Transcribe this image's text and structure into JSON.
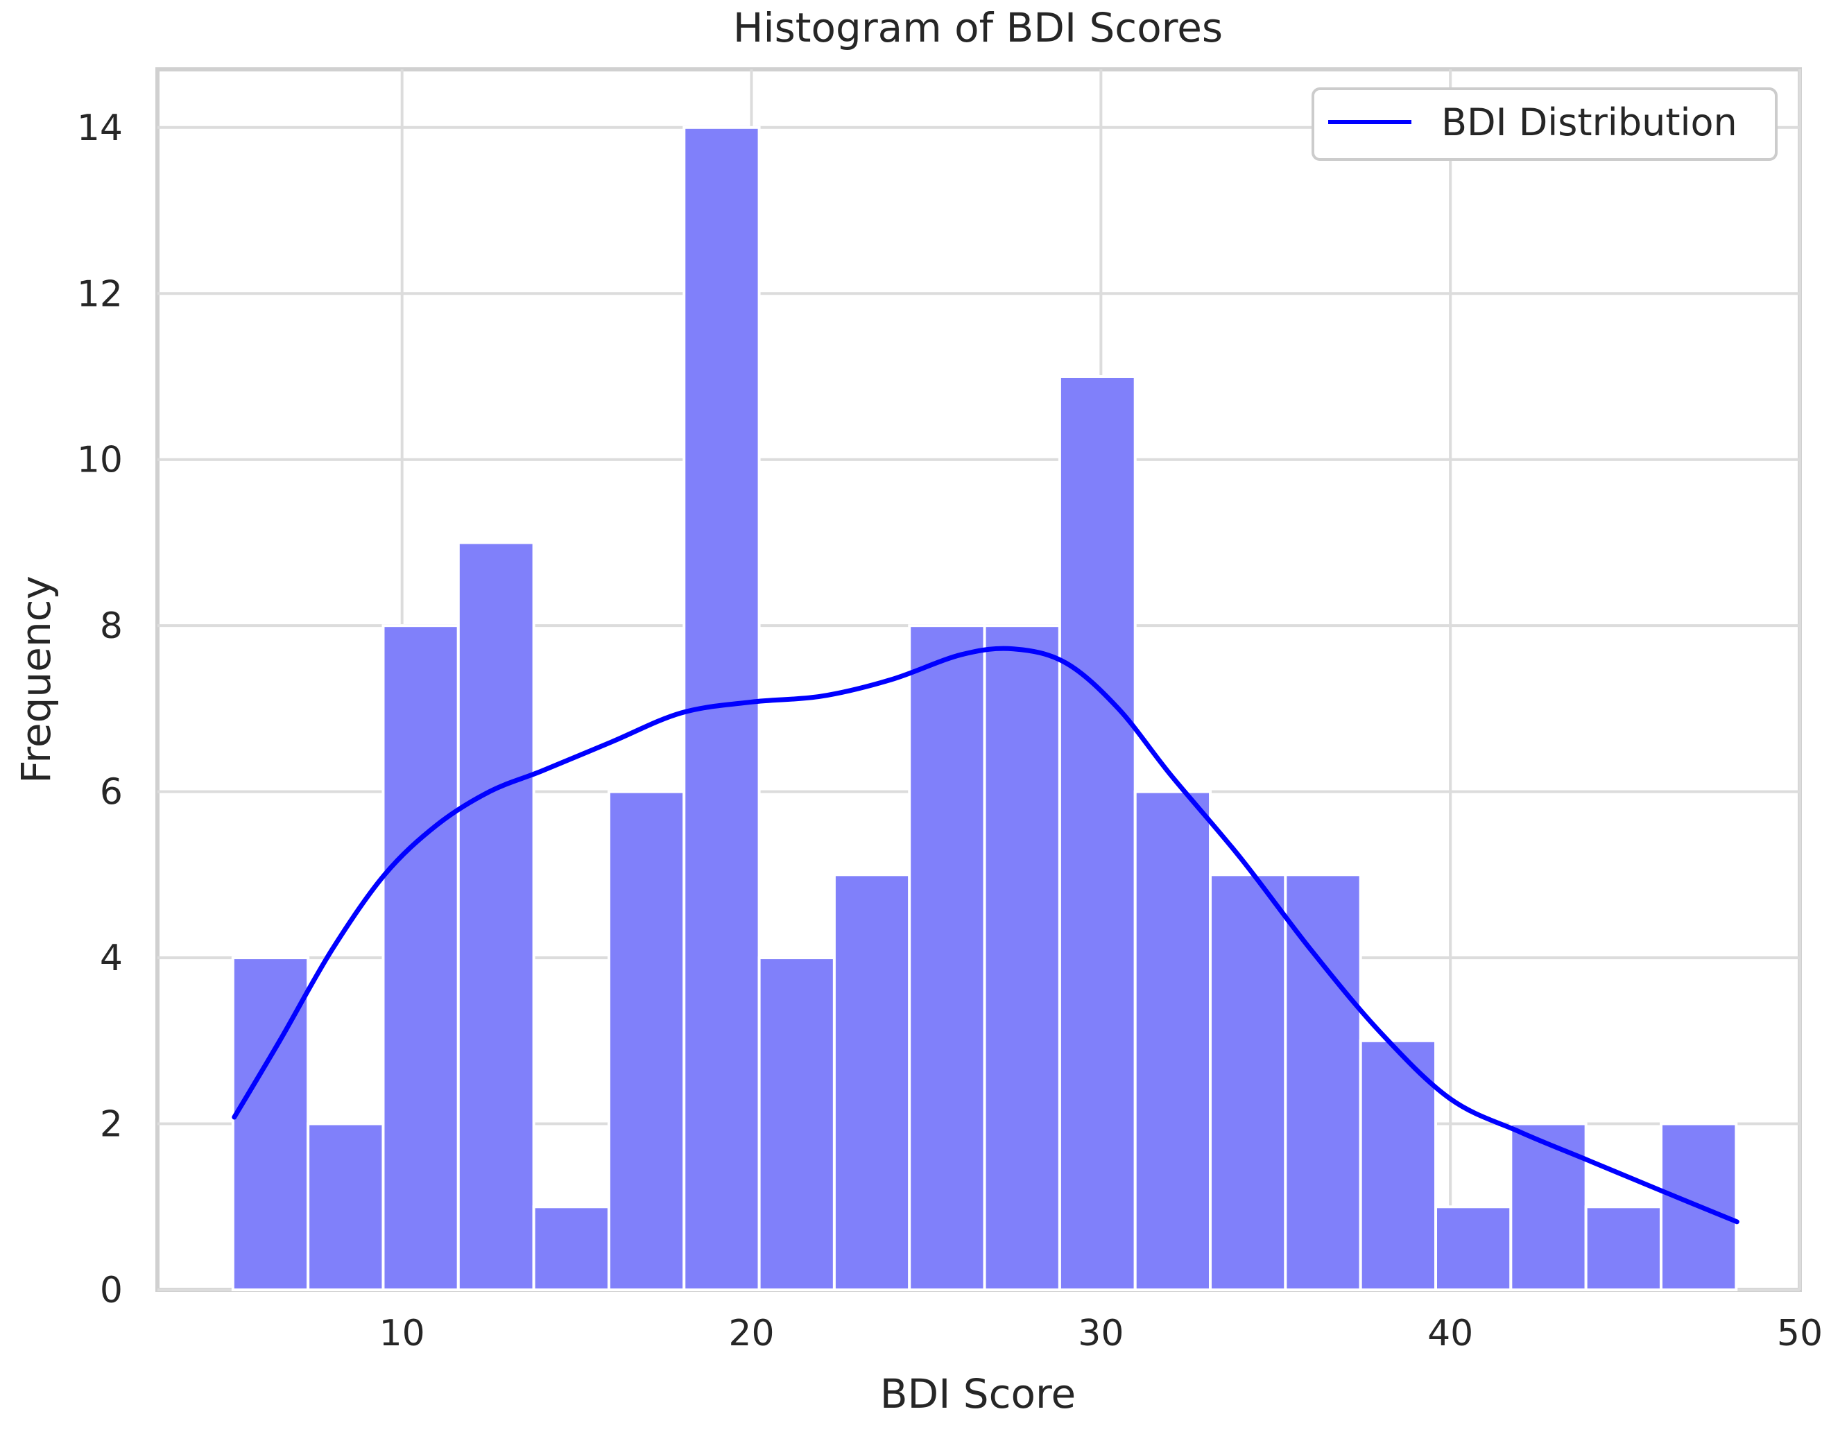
{
  "chart_data": {
    "type": "bar",
    "title": "Histogram of BDI Scores",
    "xlabel": "BDI Score",
    "ylabel": "Frequency",
    "xlim": [
      3.0,
      50.0
    ],
    "ylim": [
      0,
      14.7
    ],
    "x_ticks": [
      10,
      20,
      30,
      40,
      50
    ],
    "y_ticks": [
      0,
      2,
      4,
      6,
      8,
      10,
      12,
      14
    ],
    "grid": true,
    "bins": [
      {
        "x0": 5.16,
        "x1": 7.31,
        "count": 4
      },
      {
        "x0": 7.31,
        "x1": 9.46,
        "count": 2
      },
      {
        "x0": 9.46,
        "x1": 11.61,
        "count": 8
      },
      {
        "x0": 11.61,
        "x1": 13.77,
        "count": 9
      },
      {
        "x0": 13.77,
        "x1": 15.92,
        "count": 1
      },
      {
        "x0": 15.92,
        "x1": 18.07,
        "count": 6
      },
      {
        "x0": 18.07,
        "x1": 20.22,
        "count": 14
      },
      {
        "x0": 20.22,
        "x1": 22.37,
        "count": 4
      },
      {
        "x0": 22.37,
        "x1": 24.52,
        "count": 5
      },
      {
        "x0": 24.52,
        "x1": 26.67,
        "count": 8
      },
      {
        "x0": 26.67,
        "x1": 28.82,
        "count": 8
      },
      {
        "x0": 28.82,
        "x1": 30.98,
        "count": 11
      },
      {
        "x0": 30.98,
        "x1": 33.13,
        "count": 6
      },
      {
        "x0": 33.13,
        "x1": 35.28,
        "count": 5
      },
      {
        "x0": 35.28,
        "x1": 37.43,
        "count": 5
      },
      {
        "x0": 37.43,
        "x1": 39.58,
        "count": 3
      },
      {
        "x0": 39.58,
        "x1": 41.73,
        "count": 1
      },
      {
        "x0": 41.73,
        "x1": 43.88,
        "count": 2
      },
      {
        "x0": 43.88,
        "x1": 46.03,
        "count": 1
      },
      {
        "x0": 46.03,
        "x1": 48.18,
        "count": 2
      }
    ],
    "bar_color": "#8080fa",
    "series": [
      {
        "name": "BDI Distribution",
        "color": "#0000ff",
        "x": [
          5.2,
          6.5,
          8.0,
          9.5,
          11.0,
          12.5,
          14.0,
          16.0,
          18.0,
          20.0,
          22.0,
          24.0,
          26.0,
          27.5,
          29.0,
          30.5,
          32.0,
          34.0,
          36.0,
          38.0,
          40.0,
          42.0,
          44.0,
          46.0,
          48.2
        ],
        "y": [
          2.08,
          3.0,
          4.1,
          5.0,
          5.6,
          6.0,
          6.25,
          6.6,
          6.95,
          7.08,
          7.15,
          7.35,
          7.65,
          7.72,
          7.55,
          7.0,
          6.2,
          5.2,
          4.1,
          3.1,
          2.3,
          1.9,
          1.55,
          1.2,
          0.82
        ]
      }
    ],
    "legend": {
      "position": "top-right",
      "entries": [
        "BDI Distribution"
      ]
    }
  }
}
